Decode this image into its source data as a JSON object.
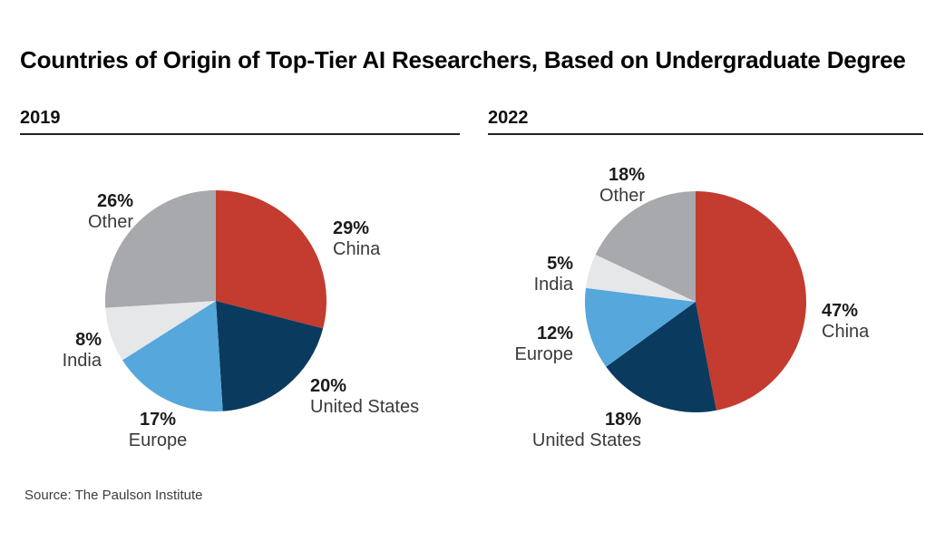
{
  "title": "Countries of Origin of Top-Tier AI Researchers, Based on Undergraduate Degree",
  "source_note": "Source: The Paulson Institute",
  "chart_data": [
    {
      "type": "pie",
      "title": "2019",
      "categories": [
        "China",
        "United States",
        "Europe",
        "India",
        "Other"
      ],
      "values": [
        29,
        20,
        17,
        8,
        26
      ],
      "colors": [
        "#c43b30",
        "#0b3a5f",
        "#55a7dc",
        "#e6e7e8",
        "#a7a9ac"
      ],
      "start_angle": "12-oclock",
      "direction": "clockwise",
      "legend": "none",
      "labels": [
        {
          "pct": "29%",
          "name": "China"
        },
        {
          "pct": "20%",
          "name": "United States"
        },
        {
          "pct": "17%",
          "name": "Europe"
        },
        {
          "pct": "8%",
          "name": "India"
        },
        {
          "pct": "26%",
          "name": "Other"
        }
      ]
    },
    {
      "type": "pie",
      "title": "2022",
      "categories": [
        "China",
        "United States",
        "Europe",
        "India",
        "Other"
      ],
      "values": [
        47,
        18,
        12,
        5,
        18
      ],
      "colors": [
        "#c43b30",
        "#0b3a5f",
        "#55a7dc",
        "#e6e7e8",
        "#a7a9ac"
      ],
      "start_angle": "12-oclock",
      "direction": "clockwise",
      "legend": "none",
      "labels": [
        {
          "pct": "47%",
          "name": "China"
        },
        {
          "pct": "18%",
          "name": "United States"
        },
        {
          "pct": "12%",
          "name": "Europe"
        },
        {
          "pct": "5%",
          "name": "India"
        },
        {
          "pct": "18%",
          "name": "Other"
        }
      ]
    }
  ]
}
